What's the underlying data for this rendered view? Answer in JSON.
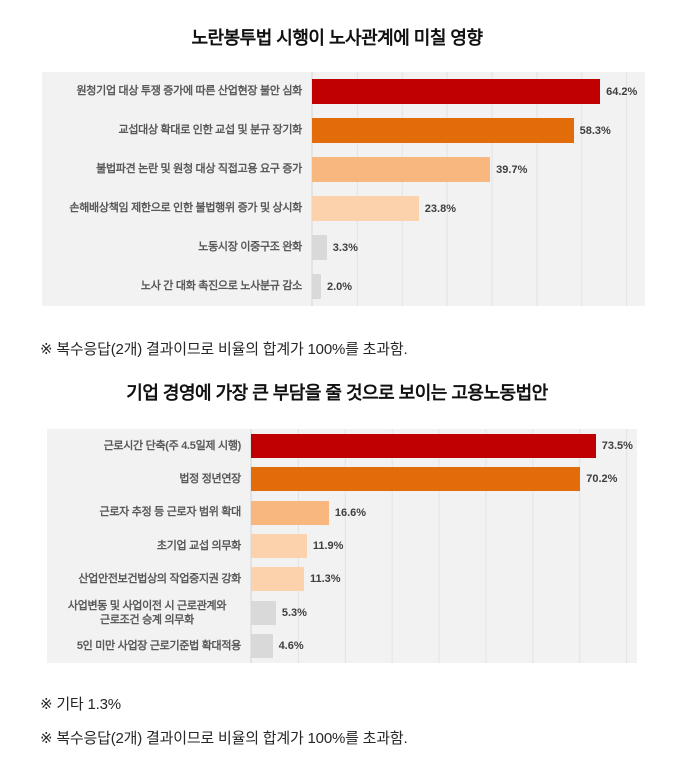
{
  "chart_data": [
    {
      "type": "bar",
      "orientation": "horizontal",
      "title": "노란봉투법 시행이 노사관계에 미칠 영향",
      "categories": [
        "원청기업 대상 투쟁 증가에 따른 산업현장 불안 심화",
        "교섭대상 확대로 인한 교섭 및 분규 장기화",
        "불법파견 논란 및 원청 대상 직접고용 요구 증가",
        "손해배상책임 제한으로 인한 불법행위 증가 및 상시화",
        "노동시장 이중구조 완화",
        "노사 간 대화 촉진으로 노사분규 감소"
      ],
      "values": [
        64.2,
        58.3,
        39.7,
        23.8,
        3.3,
        2.0
      ],
      "value_labels": [
        "64.2%",
        "58.3%",
        "39.7%",
        "23.8%",
        "3.3%",
        "2.0%"
      ],
      "bar_colors": [
        "#c00000",
        "#e36c0a",
        "#f7b77e",
        "#fbd2ac",
        "#d9d9d9",
        "#d9d9d9"
      ],
      "xlabel": "",
      "ylabel": "",
      "xlim": [
        0,
        74.2
      ],
      "gridline_step": 10,
      "grid": true,
      "legend": "none",
      "plot_bg": "#f2f2f2",
      "gridline_color": "#e3e3e3",
      "notes": [
        "※ 복수응답(2개) 결과이므로 비율의 합계가 100%를 초과함."
      ]
    },
    {
      "type": "bar",
      "orientation": "horizontal",
      "title": "기업 경영에 가장 큰 부담을 줄 것으로 보이는 고용노동법안",
      "categories": [
        "근로시간 단축(주 4.5일제 시행)",
        "법정 정년연장",
        "근로자 추정 등 근로자 범위 확대",
        "초기업 교섭 의무화",
        "산업안전보건법상의 작업중지권 강화",
        "사업변동 및 사업이전 시 근로관계와\n근로조건 승계 의무화",
        "5인 미만 사업장 근로기준법 확대적용"
      ],
      "values": [
        73.5,
        70.2,
        16.6,
        11.9,
        11.3,
        5.3,
        4.6
      ],
      "value_labels": [
        "73.5%",
        "70.2%",
        "16.6%",
        "11.9%",
        "11.3%",
        "5.3%",
        "4.6%"
      ],
      "bar_colors": [
        "#c00000",
        "#e36c0a",
        "#f7b77e",
        "#fbd2ac",
        "#fbd2ac",
        "#d9d9d9",
        "#d9d9d9"
      ],
      "xlabel": "",
      "ylabel": "",
      "xlim": [
        0,
        82.3
      ],
      "gridline_step": 10,
      "grid": true,
      "legend": "none",
      "plot_bg": "#f2f2f2",
      "gridline_color": "#e3e3e3",
      "notes": [
        "※ 기타 1.3%",
        "※ 복수응답(2개) 결과이므로 비율의 합계가 100%를 초과함."
      ]
    }
  ]
}
